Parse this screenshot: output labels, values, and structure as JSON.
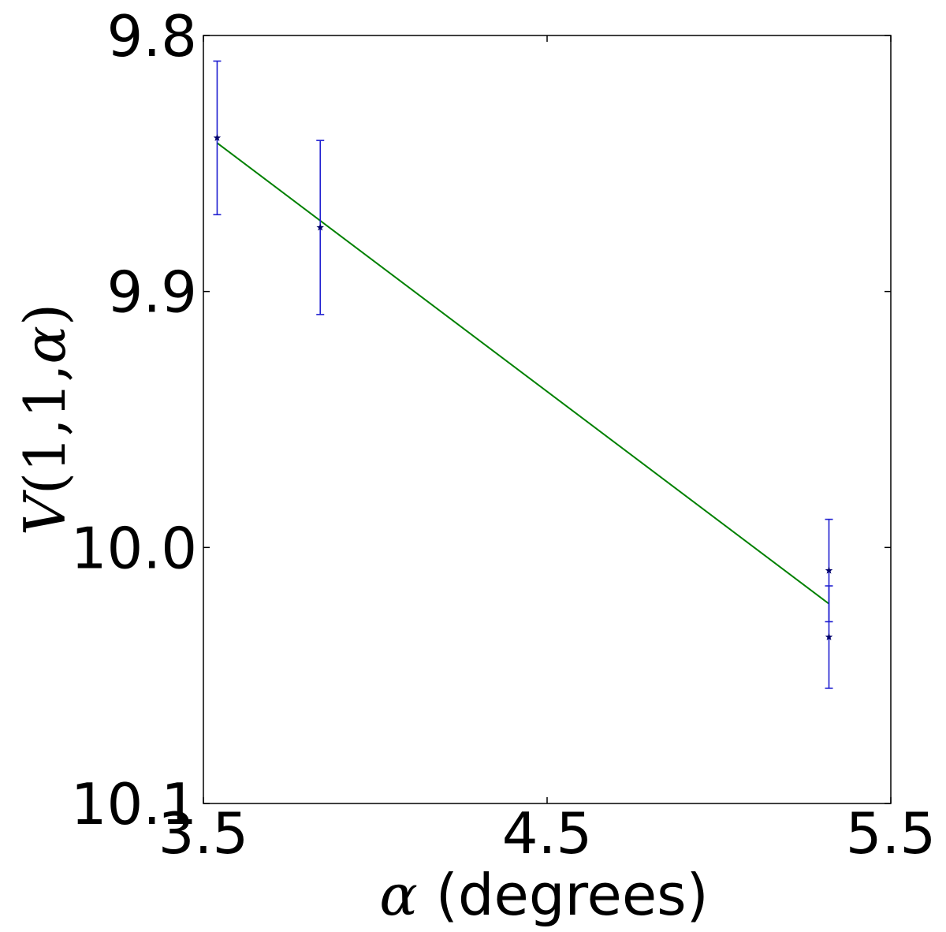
{
  "chart_data": {
    "type": "scatter",
    "xlabel": "α (degrees)",
    "ylabel": "V(1,1,α)",
    "xlim": [
      3.5,
      5.5
    ],
    "ylim": [
      10.1,
      9.8
    ],
    "y_inverted": true,
    "x_ticks": [
      "3.5",
      "4.5",
      "5.5"
    ],
    "y_ticks": [
      "9.8",
      "9.9",
      "10.0",
      "10.1"
    ],
    "grid": false,
    "colors": {
      "points": "#00006b",
      "errorbars": "#1f1fd0",
      "fit": "#008000"
    },
    "points": [
      {
        "x": 3.54,
        "y": 9.84,
        "err": 0.03
      },
      {
        "x": 3.84,
        "y": 9.875,
        "err": 0.034
      },
      {
        "x": 5.32,
        "y": 10.009,
        "err": 0.02
      },
      {
        "x": 5.32,
        "y": 10.035,
        "err": 0.02
      }
    ],
    "fit_line": {
      "x": [
        3.54,
        5.32
      ],
      "y": [
        9.842,
        10.022
      ]
    }
  }
}
